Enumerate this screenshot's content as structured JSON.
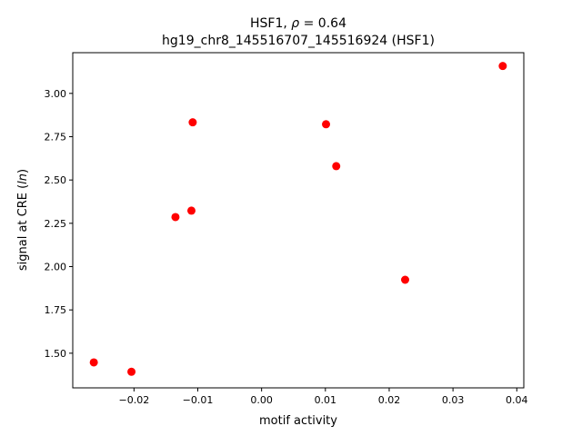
{
  "chart_data": {
    "type": "scatter",
    "title_line1_prefix": "HSF1, ",
    "title_line1_rho": "ρ",
    "title_line1_suffix": " = 0.64",
    "title_line2": "hg19_chr8_145516707_145516924 (HSF1)",
    "xlabel": "motif activity",
    "ylabel_prefix": "signal at CRE (",
    "ylabel_italic": "ln",
    "ylabel_suffix": ")",
    "xlim": [
      -0.0296,
      0.0411
    ],
    "ylim": [
      1.3,
      3.235
    ],
    "x_ticks": [
      -0.02,
      -0.01,
      0.0,
      0.01,
      0.02,
      0.03,
      0.04
    ],
    "x_tick_labels": [
      "−0.02",
      "−0.01",
      "0.00",
      "0.01",
      "0.02",
      "0.03",
      "0.04"
    ],
    "y_ticks": [
      1.5,
      1.75,
      2.0,
      2.25,
      2.5,
      2.75,
      3.0
    ],
    "y_tick_labels": [
      "1.50",
      "1.75",
      "2.00",
      "2.25",
      "2.50",
      "2.75",
      "3.00"
    ],
    "grid": false,
    "marker_color": "#ff0000",
    "points": [
      {
        "x": -0.0263,
        "y": 1.447
      },
      {
        "x": -0.0204,
        "y": 1.393
      },
      {
        "x": -0.0135,
        "y": 2.286
      },
      {
        "x": -0.011,
        "y": 2.323
      },
      {
        "x": -0.0108,
        "y": 2.833
      },
      {
        "x": 0.0101,
        "y": 2.822
      },
      {
        "x": 0.0117,
        "y": 2.58
      },
      {
        "x": 0.0225,
        "y": 1.924
      },
      {
        "x": 0.0378,
        "y": 3.158
      }
    ]
  }
}
